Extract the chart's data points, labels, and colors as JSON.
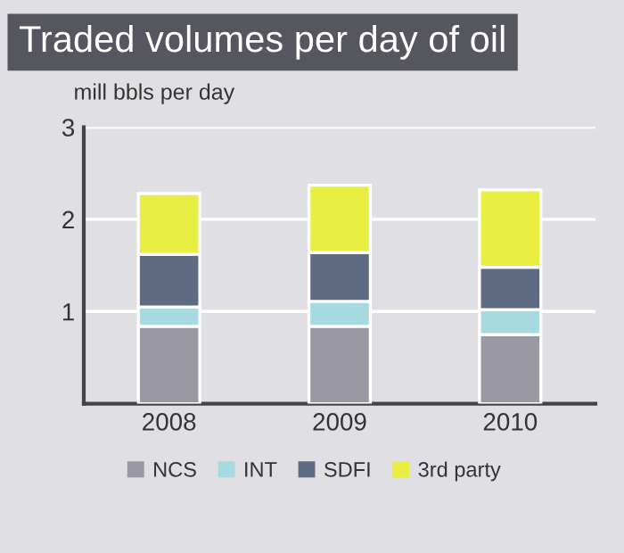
{
  "chart_data": {
    "type": "bar",
    "title": "Traded volumes per day of oil",
    "ylabel": "mill bbls per day",
    "categories": [
      "2008",
      "2009",
      "2010"
    ],
    "stacked": true,
    "series": [
      {
        "name": "NCS",
        "color": "#9a98a3",
        "values": [
          0.84,
          0.84,
          0.75
        ]
      },
      {
        "name": "INT",
        "color": "#a6d9e0",
        "values": [
          0.21,
          0.27,
          0.27
        ]
      },
      {
        "name": "SDFI",
        "color": "#5f6b82",
        "values": [
          0.57,
          0.53,
          0.46
        ]
      },
      {
        "name": "3rd party",
        "color": "#e8ef42",
        "values": [
          0.66,
          0.73,
          0.84
        ]
      }
    ],
    "ylim": [
      0,
      3
    ],
    "yticks": [
      1,
      2,
      3
    ],
    "grid": "y",
    "legend": "bottom"
  }
}
